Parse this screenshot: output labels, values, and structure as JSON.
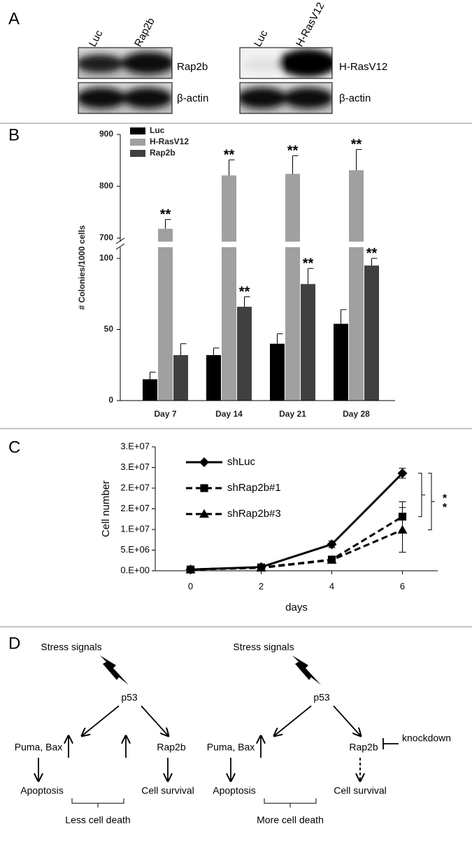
{
  "panel_labels": [
    "A",
    "B",
    "C",
    "D"
  ],
  "blots": [
    {
      "lanes": [
        "Luc",
        "Rap2b"
      ],
      "rows": [
        "Rap2b",
        "β-actin"
      ]
    },
    {
      "lanes": [
        "Luc",
        "H-RasV12"
      ],
      "rows": [
        "H-RasV12",
        "β-actin"
      ]
    }
  ],
  "chart_data": [
    {
      "type": "bar",
      "categories": [
        "Day 7",
        "Day 14",
        "Day 21",
        "Day 28"
      ],
      "series": [
        {
          "name": "Luc",
          "color": "#000000",
          "values": [
            15,
            32,
            40,
            54
          ],
          "errors": [
            5,
            5,
            7,
            10
          ]
        },
        {
          "name": "H-RasV12",
          "color": "#a0a0a0",
          "values": [
            718,
            821,
            824,
            831
          ],
          "errors": [
            18,
            30,
            35,
            40
          ],
          "significance": [
            "**",
            "**",
            "**",
            "**"
          ]
        },
        {
          "name": "Rap2b",
          "color": "#404040",
          "values": [
            32,
            66,
            82,
            95
          ],
          "errors": [
            8,
            7,
            11,
            8
          ],
          "significance": [
            null,
            "**",
            "**",
            "**"
          ]
        }
      ],
      "ylabel": "# Colonies/1000 cells",
      "ylim": [
        0,
        900
      ],
      "ybreak": [
        100,
        700
      ],
      "yticks": [
        0,
        50,
        100,
        700,
        800,
        900
      ],
      "legend": "upper left"
    },
    {
      "type": "line",
      "x": [
        0,
        2,
        4,
        6
      ],
      "series": [
        {
          "name": "shLuc",
          "color": "#000000",
          "marker": "diamond",
          "dashed": false,
          "values": [
            300000,
            900000,
            6400000,
            23600000
          ],
          "errors": [
            100000,
            200000,
            800000,
            1200000
          ]
        },
        {
          "name": "shRap2b#1",
          "color": "#000000",
          "marker": "square",
          "dashed": true,
          "values": [
            300000,
            800000,
            2700000,
            13100000
          ],
          "errors": [
            100000,
            200000,
            500000,
            3600000
          ]
        },
        {
          "name": "shRap2b#3",
          "color": "#000000",
          "marker": "triangle",
          "dashed": true,
          "values": [
            300000,
            700000,
            2600000,
            9900000
          ],
          "errors": [
            100000,
            200000,
            500000,
            5400000
          ]
        }
      ],
      "significance": [
        "*",
        "*"
      ],
      "xlabel": "days",
      "ylabel": "Cell number",
      "xlim": [
        -1,
        7
      ],
      "xticks": [
        0,
        2,
        4,
        6
      ],
      "ylim": [
        0,
        30000000
      ],
      "yticks": [
        {
          "value": 0,
          "label": "0.E+00"
        },
        {
          "value": 5000000,
          "label": "5.E+06"
        },
        {
          "value": 10000000,
          "label": "1.E+07"
        },
        {
          "value": 15000000,
          "label": "2.E+07"
        },
        {
          "value": 20000000,
          "label": "2.E+07"
        },
        {
          "value": 25000000,
          "label": "3.E+07"
        },
        {
          "value": 30000000,
          "label": "3.E+07"
        }
      ],
      "legend": "upper left"
    }
  ],
  "diagrams": [
    {
      "stimulus": "Stress signals",
      "hub": "p53",
      "left": "Puma, Bax",
      "right": "Rap2b",
      "left_outcome": "Apoptosis",
      "right_outcome": "Cell survival",
      "result": "Less cell death"
    },
    {
      "stimulus": "Stress signals",
      "hub": "p53",
      "left": "Puma, Bax",
      "right": "Rap2b",
      "inhibitor": "knockdown",
      "left_outcome": "Apoptosis",
      "right_outcome": "Cell survival",
      "result": "More cell death"
    }
  ]
}
